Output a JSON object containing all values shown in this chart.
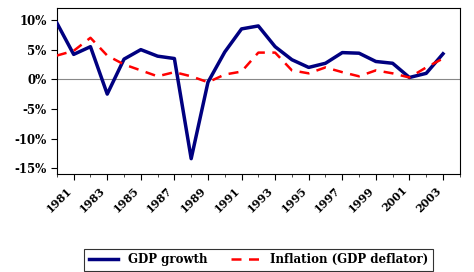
{
  "years": [
    1980,
    1981,
    1982,
    1983,
    1984,
    1985,
    1986,
    1987,
    1988,
    1989,
    1990,
    1991,
    1992,
    1993,
    1994,
    1995,
    1996,
    1997,
    1998,
    1999,
    2000,
    2001,
    2002,
    2003
  ],
  "gdp_growth": [
    9.5,
    4.2,
    5.5,
    -2.5,
    3.4,
    5.0,
    3.9,
    3.5,
    -13.4,
    -0.5,
    4.6,
    8.5,
    9.0,
    5.5,
    3.3,
    2.0,
    2.7,
    4.5,
    4.4,
    3.0,
    2.7,
    0.3,
    1.0,
    4.3
  ],
  "inflation": [
    4.0,
    4.8,
    7.0,
    4.0,
    2.5,
    1.5,
    0.5,
    1.2,
    0.5,
    -0.5,
    0.8,
    1.3,
    4.5,
    4.5,
    1.5,
    1.0,
    2.0,
    1.2,
    0.5,
    1.5,
    1.0,
    0.3,
    2.0,
    3.5
  ],
  "gdp_color": "#000080",
  "inflation_color": "#FF0000",
  "ylim": [
    -16,
    12
  ],
  "yticks": [
    -15,
    -10,
    -5,
    0,
    5,
    10
  ],
  "ytick_labels": [
    "-15%",
    "-10%",
    "-5%",
    "0%",
    "5%",
    "10%"
  ],
  "xtick_years": [
    1981,
    1983,
    1985,
    1987,
    1989,
    1991,
    1993,
    1995,
    1997,
    1999,
    2001,
    2003
  ],
  "legend_gdp": "GDP growth",
  "legend_inflation": "Inflation (GDP deflator)"
}
